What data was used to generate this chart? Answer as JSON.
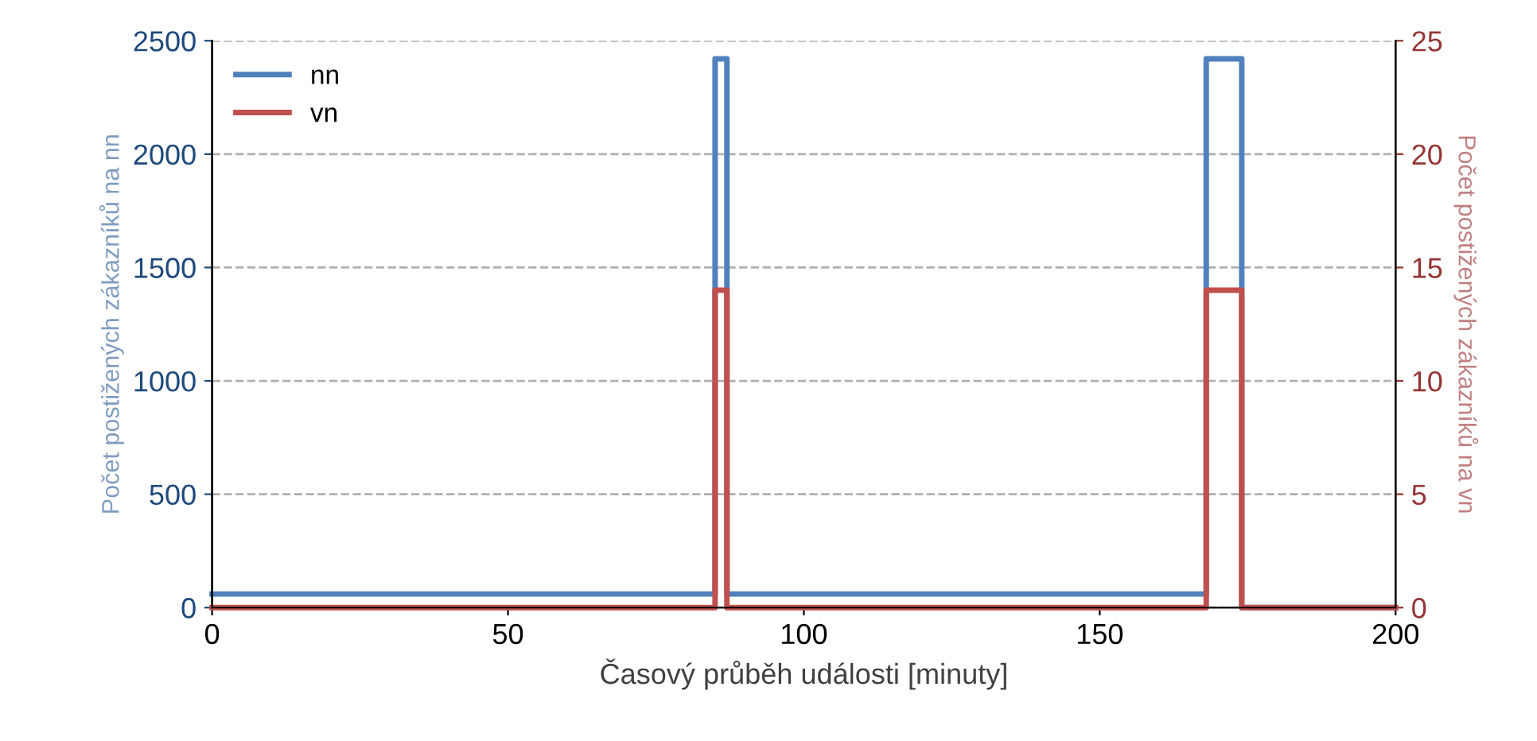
{
  "chart_data": {
    "type": "step",
    "xlabel": "Časový průběh události [minuty]",
    "ylabel": "Počet postižených zákazníků na nn",
    "y2label": "Počet postižených zákazníků na vn",
    "series": [
      {
        "name": "nn",
        "color": "#4f81bd",
        "x": [
          0,
          85,
          87,
          168,
          174,
          200
        ],
        "values": [
          60,
          2420,
          60,
          2420,
          0,
          0
        ]
      },
      {
        "name": "vn",
        "color": "#c0504d",
        "axis": "y2",
        "x": [
          0,
          85,
          87,
          168,
          174,
          200
        ],
        "values": [
          0,
          14,
          0,
          14,
          0,
          0
        ]
      }
    ],
    "xlim": [
      0,
      200
    ],
    "xticks": [
      0,
      50,
      100,
      150,
      200
    ],
    "ylim": [
      0,
      2500
    ],
    "yticks": [
      0,
      500,
      1000,
      1500,
      2000,
      2500
    ],
    "y2lim": [
      0,
      25
    ],
    "y2ticks": [
      0,
      5,
      10,
      15,
      20,
      25
    ],
    "grid": "y",
    "legend": "top left",
    "line_style": "solid",
    "marker": "none"
  }
}
